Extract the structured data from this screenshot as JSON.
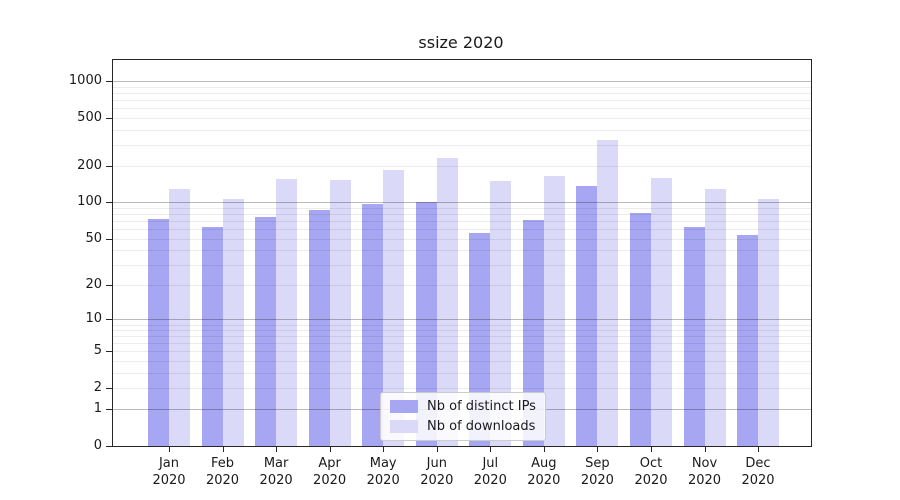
{
  "chart_data": {
    "type": "bar",
    "title": "ssize 2020",
    "year": "2020",
    "categories": [
      "Jan",
      "Feb",
      "Mar",
      "Apr",
      "May",
      "Jun",
      "Jul",
      "Aug",
      "Sep",
      "Oct",
      "Nov",
      "Dec"
    ],
    "series": [
      {
        "name": "Nb of distinct IPs",
        "color": "#a6a6f2",
        "values": [
          73,
          62,
          76,
          87,
          97,
          101,
          56,
          71,
          137,
          82,
          62,
          54
        ]
      },
      {
        "name": "Nb of downloads",
        "color": "#dadaf8",
        "values": [
          129,
          106,
          158,
          155,
          185,
          235,
          151,
          166,
          330,
          161,
          129,
          107
        ]
      }
    ],
    "y_ticks": [
      0,
      1,
      2,
      5,
      10,
      20,
      50,
      100,
      200,
      500,
      1000
    ],
    "major_gridlines": [
      1,
      10,
      100,
      1000
    ],
    "minor_gridlines": [
      2,
      3,
      4,
      5,
      6,
      7,
      8,
      9,
      20,
      30,
      40,
      50,
      60,
      70,
      80,
      90,
      200,
      300,
      400,
      500,
      600,
      700,
      800,
      900
    ],
    "scale": "log1p",
    "ylim": [
      0,
      1500
    ],
    "xlabel": "",
    "ylabel": "",
    "grid": true,
    "legend_position": "lower-center"
  }
}
